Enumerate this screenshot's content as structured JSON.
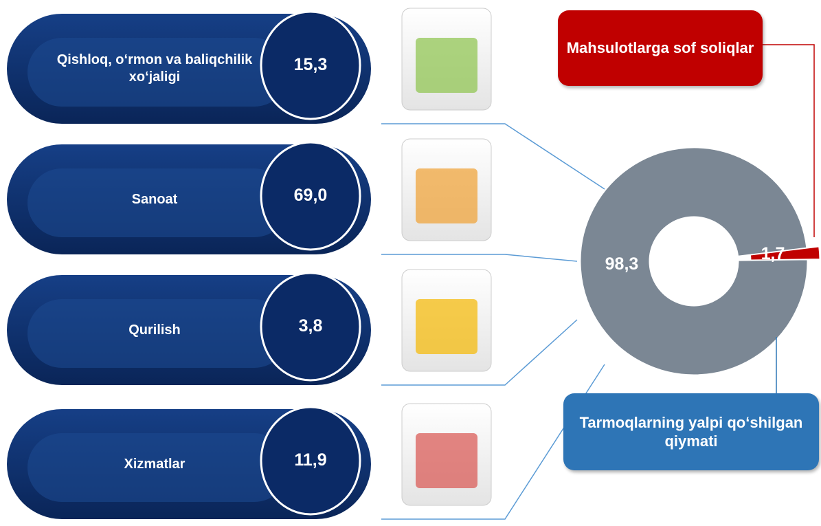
{
  "chart_data": {
    "type": "donut",
    "categories": [
      "Mahsulotlarga sof soliqlar",
      "Tarmoqlarning yalpi qo‘shilgan qiymati"
    ],
    "values": [
      1.7,
      98.3
    ],
    "value_labels": [
      "1,7",
      "98,3"
    ],
    "colors": [
      "#c00000",
      "#7b8794"
    ],
    "box_colors": [
      "#c00000",
      "#2e75b6"
    ]
  },
  "sectors": [
    {
      "label": "Qishloq, o‘rmon va baliqchilik xo‘jaligi",
      "value": "15,3"
    },
    {
      "label": "Sanoat",
      "value": "69,0"
    },
    {
      "label": "Qurilish",
      "value": "3,8"
    },
    {
      "label": "Xizmatlar",
      "value": "11,9"
    }
  ]
}
